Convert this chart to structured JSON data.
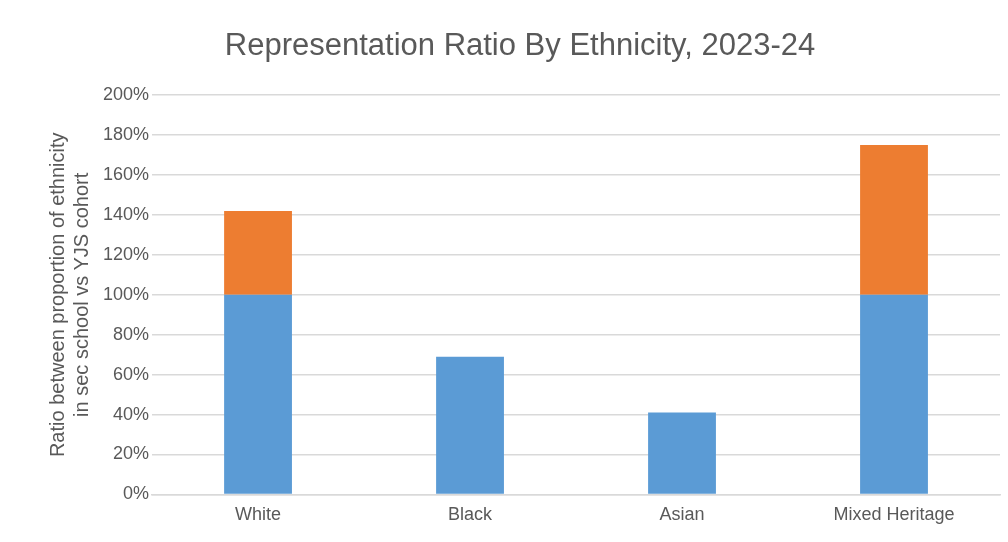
{
  "chart_data": {
    "type": "bar",
    "title": "Representation Ratio By Ethnicity, 2023-24",
    "ylabel": "Ratio between proportion of ethnicity\nin sec school vs YJS cohort",
    "categories": [
      "White",
      "Black",
      "Asian",
      "Mixed Heritage"
    ],
    "stacked": true,
    "series": [
      {
        "color": "#5b9bd5",
        "values": [
          100,
          69,
          41,
          100
        ]
      },
      {
        "color": "#ed7d31",
        "values": [
          42,
          null,
          null,
          75
        ]
      }
    ],
    "ylim": [
      0,
      200
    ],
    "yticks": [
      {
        "value": 0,
        "label": "0%"
      },
      {
        "value": 20,
        "label": "20%"
      },
      {
        "value": 40,
        "label": "40%"
      },
      {
        "value": 60,
        "label": "60%"
      },
      {
        "value": 80,
        "label": "80%"
      },
      {
        "value": 100,
        "label": "100%"
      },
      {
        "value": 120,
        "label": "120%"
      },
      {
        "value": 140,
        "label": "140%"
      },
      {
        "value": 160,
        "label": "160%"
      },
      {
        "value": 180,
        "label": "180%"
      },
      {
        "value": 200,
        "label": "200%"
      }
    ],
    "grid": "y",
    "legend": false
  }
}
